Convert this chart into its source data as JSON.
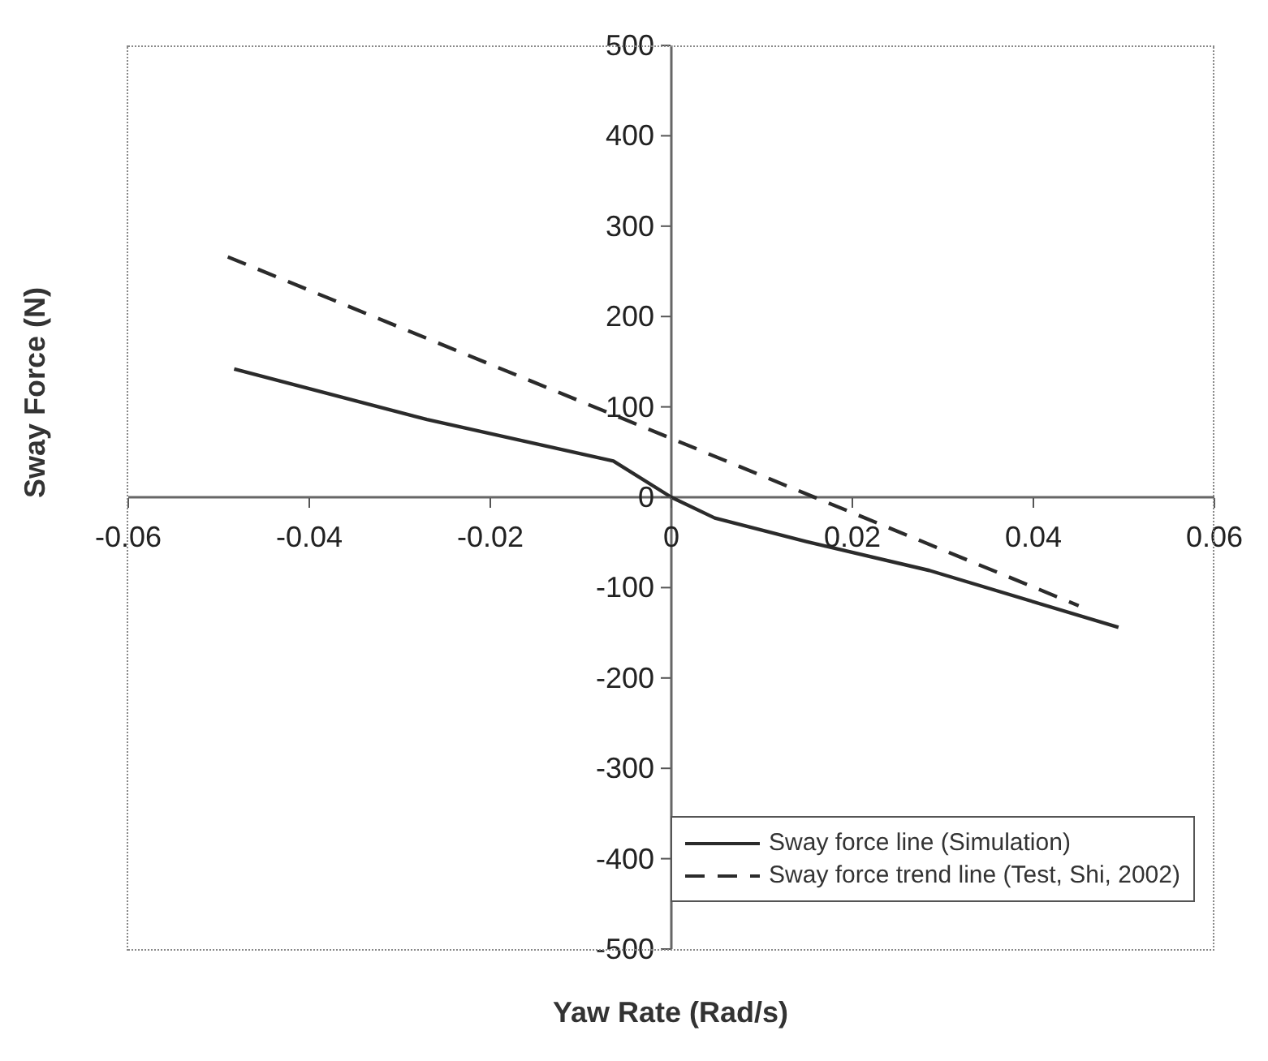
{
  "chart_data": {
    "type": "line",
    "xlabel": "Yaw Rate (Rad/s)",
    "ylabel": "Sway Force (N)",
    "xlim": [
      -0.06,
      0.06
    ],
    "xticks": [
      -0.06,
      -0.04,
      -0.02,
      0,
      0.02,
      0.04,
      0.06
    ],
    "ylim": [
      -500,
      500
    ],
    "yticks": [
      -500,
      -400,
      -300,
      -200,
      -100,
      0,
      100,
      200,
      300,
      400,
      500
    ],
    "grid": false,
    "legend": "bottom right",
    "marker": "none",
    "series": [
      {
        "name": "Sway force line (Simulation)",
        "color": "#2b2b2b",
        "line_style": "solid",
        "x": [
          -0.0483,
          -0.027,
          -0.0064,
          0,
          0.0048,
          0.0149,
          0.0285,
          0.0494
        ],
        "values": [
          142,
          86,
          40,
          0,
          -23,
          -49,
          -81,
          -144
        ]
      },
      {
        "name": "Sway force trend line (Test, Shi, 2002)",
        "color": "#2b2b2b",
        "line_style": "dashed",
        "x": [
          -0.049,
          0,
          0.045
        ],
        "values": [
          266,
          65,
          -120
        ]
      }
    ]
  }
}
